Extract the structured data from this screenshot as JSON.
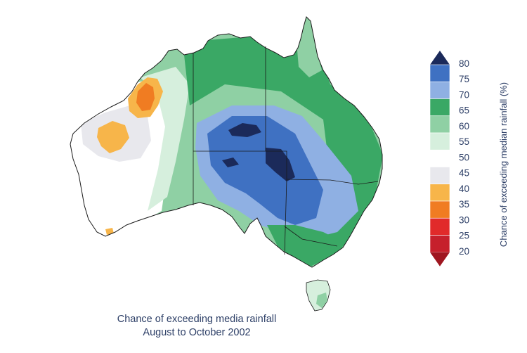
{
  "caption": {
    "line1": "Chance of exceeding media rainfall",
    "line2": "August to October 2002"
  },
  "legend": {
    "title": "Chance of exceeding median rainfall (%)",
    "ticks": [
      "80",
      "75",
      "70",
      "65",
      "60",
      "55",
      "50",
      "45",
      "40",
      "35",
      "30",
      "25",
      "20"
    ],
    "colors": [
      "#1b2a5a",
      "#3f71c2",
      "#8fb0e3",
      "#3aa865",
      "#8fd0a4",
      "#d6efdd",
      "#ffffff",
      "#e8e8ed",
      "#f7b54a",
      "#f07c22",
      "#e12a2a",
      "#c6202c",
      "#9f1620"
    ]
  }
}
